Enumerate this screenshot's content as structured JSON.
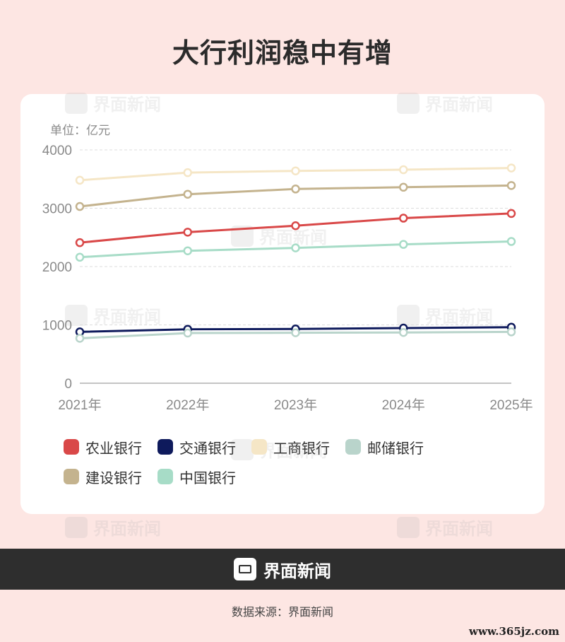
{
  "title": "大行利润稳中有增",
  "watermark_text": "界面新闻",
  "unit_label": "单位：亿元",
  "footer": {
    "brand": "界面新闻",
    "source": "数据来源：界面新闻"
  },
  "site_mark": "www.365jz.com",
  "chart_data": {
    "type": "line",
    "title": "大行利润稳中有增",
    "ylabel": "单位：亿元",
    "xlabel": "",
    "x": [
      "2021年",
      "2022年",
      "2023年",
      "2024年",
      "2025年"
    ],
    "ylim": [
      0,
      4000
    ],
    "yticks": [
      0,
      1000,
      2000,
      3000,
      4000
    ],
    "grid": true,
    "legend_position": "bottom",
    "series": [
      {
        "name": "农业银行",
        "color": "#d94848",
        "values": [
          2410,
          2590,
          2700,
          2830,
          2910
        ]
      },
      {
        "name": "交通银行",
        "color": "#0e1a5c",
        "values": [
          880,
          925,
          930,
          945,
          960
        ]
      },
      {
        "name": "工商银行",
        "color": "#f5e6c6",
        "values": [
          3480,
          3610,
          3640,
          3660,
          3690
        ]
      },
      {
        "name": "邮储银行",
        "color": "#b9d4cb",
        "values": [
          770,
          860,
          865,
          870,
          880
        ]
      },
      {
        "name": "建设银行",
        "color": "#c4b38e",
        "values": [
          3030,
          3240,
          3330,
          3360,
          3390
        ]
      },
      {
        "name": "中国银行",
        "color": "#a7dcc7",
        "values": [
          2160,
          2270,
          2320,
          2380,
          2430
        ]
      }
    ]
  }
}
